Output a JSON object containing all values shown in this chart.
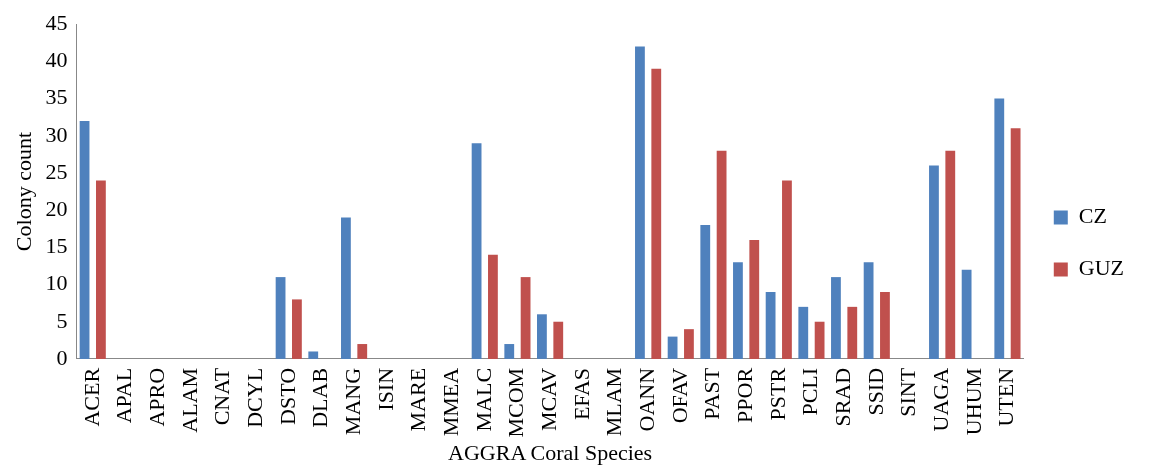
{
  "chart_data": {
    "type": "bar",
    "xlabel": "AGGRA Coral Species",
    "ylabel": "Colony count",
    "categories": [
      "ACER",
      "APAL",
      "APRO",
      "ALAM",
      "CNAT",
      "DCYL",
      "DSTO",
      "DLAB",
      "MANG",
      "ISIN",
      "MARE",
      "MMEA",
      "MALC",
      "MCOM",
      "MCAV",
      "EFAS",
      "MLAM",
      "OANN",
      "OFAV",
      "PAST",
      "PPOR",
      "PSTR",
      "PCLI",
      "SRAD",
      "SSID",
      "SINT",
      "UAGA",
      "UHUM",
      "UTEN"
    ],
    "series": [
      {
        "name": "CZ",
        "color": "#4f81bd",
        "values": [
          32,
          0,
          0,
          0,
          0,
          0,
          11,
          1,
          19,
          0,
          0,
          0,
          29,
          2,
          6,
          0,
          0,
          42,
          3,
          18,
          13,
          9,
          7,
          11,
          13,
          0,
          26,
          12,
          35
        ]
      },
      {
        "name": "GUZ",
        "color": "#c0504d",
        "values": [
          24,
          0,
          0,
          0,
          0,
          0,
          8,
          0,
          2,
          0,
          0,
          0,
          14,
          11,
          5,
          0,
          0,
          39,
          4,
          28,
          16,
          24,
          5,
          7,
          9,
          0,
          28,
          0,
          31
        ]
      }
    ],
    "ylim": [
      0,
      45
    ],
    "yticks": [
      0,
      5,
      10,
      15,
      20,
      25,
      30,
      35,
      40,
      45
    ],
    "grid": false,
    "legend": "right"
  }
}
